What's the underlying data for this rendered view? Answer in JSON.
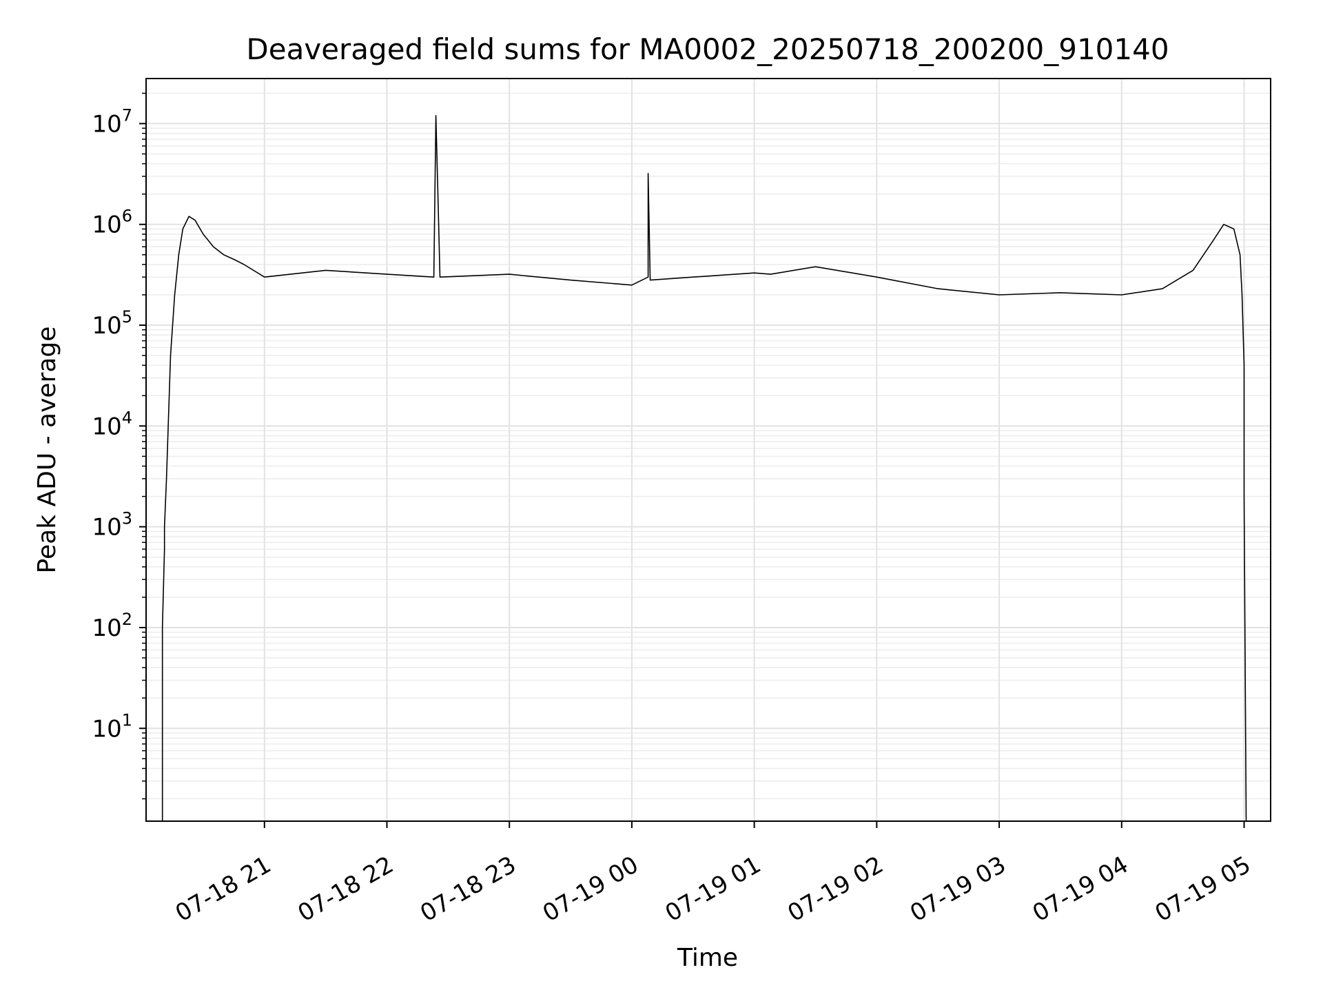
{
  "chart_data": {
    "type": "line",
    "title": "Deaveraged field sums for MA0002_20250718_200200_910140",
    "xlabel": "Time",
    "ylabel": "Peak ADU - average",
    "xscale": "time",
    "yscale": "log",
    "xlim": [
      "2025-07-18 20:02",
      "2025-07-19 05:13"
    ],
    "ylim": [
      1.2,
      28000000
    ],
    "grid": true,
    "xticks": [
      {
        "value": "2025-07-18 21:00",
        "label": "07-18 21"
      },
      {
        "value": "2025-07-18 22:00",
        "label": "07-18 22"
      },
      {
        "value": "2025-07-18 23:00",
        "label": "07-18 23"
      },
      {
        "value": "2025-07-19 00:00",
        "label": "07-19 00"
      },
      {
        "value": "2025-07-19 01:00",
        "label": "07-19 01"
      },
      {
        "value": "2025-07-19 02:00",
        "label": "07-19 02"
      },
      {
        "value": "2025-07-19 03:00",
        "label": "07-19 03"
      },
      {
        "value": "2025-07-19 04:00",
        "label": "07-19 04"
      },
      {
        "value": "2025-07-19 05:00",
        "label": "07-19 05"
      }
    ],
    "yticks": [
      {
        "value": 10,
        "base": "10",
        "exp": "1"
      },
      {
        "value": 100,
        "base": "10",
        "exp": "2"
      },
      {
        "value": 1000,
        "base": "10",
        "exp": "3"
      },
      {
        "value": 10000,
        "base": "10",
        "exp": "4"
      },
      {
        "value": 100000,
        "base": "10",
        "exp": "5"
      },
      {
        "value": 1000000,
        "base": "10",
        "exp": "6"
      },
      {
        "value": 10000000,
        "base": "10",
        "exp": "7"
      }
    ],
    "series": [
      {
        "color": "#000000",
        "x": [
          "2025-07-18 20:10",
          "2025-07-18 20:10",
          "2025-07-18 20:11",
          "2025-07-18 20:11",
          "2025-07-18 20:12",
          "2025-07-18 20:14",
          "2025-07-18 20:16",
          "2025-07-18 20:18",
          "2025-07-18 20:20",
          "2025-07-18 20:23",
          "2025-07-18 20:26",
          "2025-07-18 20:30",
          "2025-07-18 20:35",
          "2025-07-18 20:40",
          "2025-07-18 20:45",
          "2025-07-18 20:50",
          "2025-07-18 21:00",
          "2025-07-18 21:30",
          "2025-07-18 22:00",
          "2025-07-18 22:23",
          "2025-07-18 22:24",
          "2025-07-18 22:25",
          "2025-07-18 22:26",
          "2025-07-18 23:00",
          "2025-07-18 23:30",
          "2025-07-19 00:00",
          "2025-07-19 00:08",
          "2025-07-19 00:08",
          "2025-07-19 00:09",
          "2025-07-19 00:30",
          "2025-07-19 01:00",
          "2025-07-19 01:08",
          "2025-07-19 01:30",
          "2025-07-19 02:00",
          "2025-07-19 02:30",
          "2025-07-19 03:00",
          "2025-07-19 03:30",
          "2025-07-19 04:00",
          "2025-07-19 04:20",
          "2025-07-19 04:35",
          "2025-07-19 04:45",
          "2025-07-19 04:50",
          "2025-07-19 04:55",
          "2025-07-19 04:58",
          "2025-07-19 04:59",
          "2025-07-19 05:00",
          "2025-07-19 05:00",
          "2025-07-19 05:01"
        ],
        "y": [
          1.2,
          100,
          600,
          1000,
          3000,
          50000,
          200000,
          500000,
          900000,
          1200000,
          1100000,
          800000,
          600000,
          500000,
          450000,
          400000,
          300000,
          350000,
          320000,
          300000,
          12000000,
          2000000,
          300000,
          320000,
          280000,
          250000,
          300000,
          3200000,
          280000,
          300000,
          330000,
          320000,
          380000,
          300000,
          230000,
          200000,
          210000,
          200000,
          230000,
          350000,
          700000,
          1000000,
          900000,
          500000,
          200000,
          40000,
          2000,
          1.2
        ]
      }
    ]
  }
}
